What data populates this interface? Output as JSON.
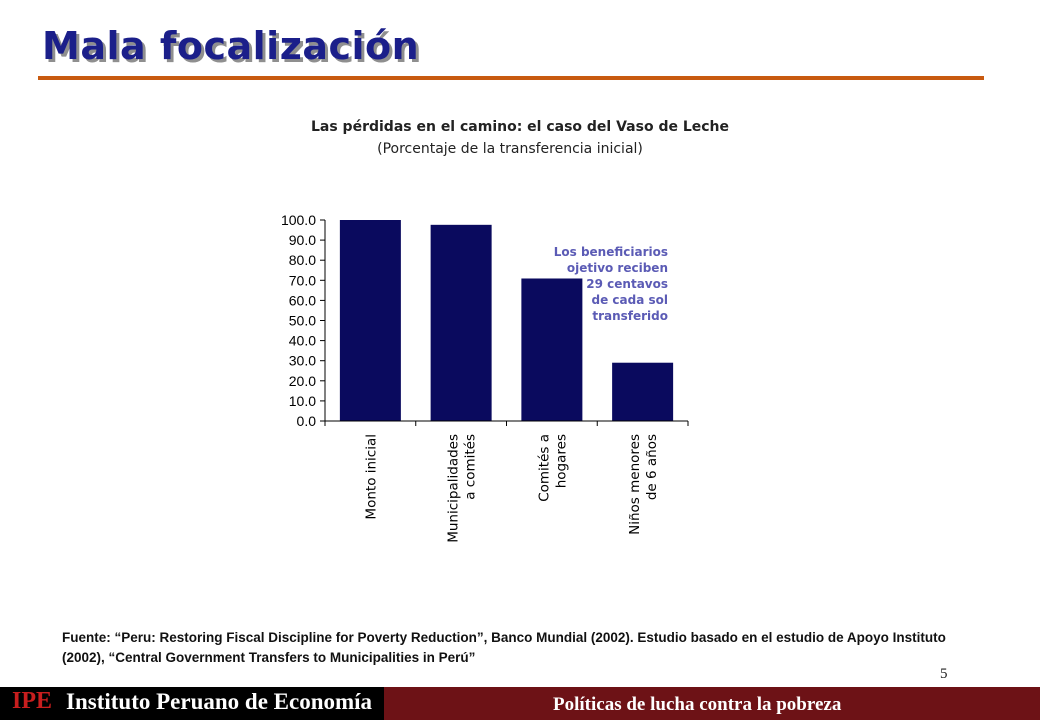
{
  "slide": {
    "title": "Mala focalización",
    "page_number": "5",
    "source": "Fuente: “Peru: Restoring Fiscal Discipline for Poverty Reduction”, Banco Mundial (2002). Estudio basado en el estudio de Apoyo Instituto (2002), “Central Government Transfers to Municipalities in Perú”"
  },
  "footer": {
    "logo": "IPE",
    "organization": "Instituto Peruano de Economía",
    "topic": "Políticas de lucha contra la pobreza"
  },
  "colors": {
    "title": "#1b1f8a",
    "title_rule": "#c85a10",
    "bar": "#0a0a5e",
    "annotation": "#5b5bb5",
    "footer_dark": "#000000",
    "footer_accent": "#6d1216"
  },
  "chart_data": {
    "type": "bar",
    "title": "Las pérdidas en el camino: el caso del Vaso de Leche",
    "subtitle": "(Porcentaje de la transferencia inicial)",
    "categories": [
      [
        "Monto inicial"
      ],
      [
        "Municipalidades",
        "a comités"
      ],
      [
        "Comités a",
        "hogares"
      ],
      [
        "Niños menores",
        "de 6 años"
      ]
    ],
    "values": [
      100.0,
      97.6,
      70.9,
      29.0
    ],
    "y_ticks": [
      "0.0",
      "10.0",
      "20.0",
      "30.0",
      "40.0",
      "50.0",
      "60.0",
      "70.0",
      "80.0",
      "90.0",
      "100.0"
    ],
    "ylim": [
      0,
      100
    ],
    "grid": false,
    "annotation": [
      "Los beneficiarios",
      "ojetivo reciben",
      "29 centavos",
      "de cada sol",
      "transferido"
    ]
  }
}
